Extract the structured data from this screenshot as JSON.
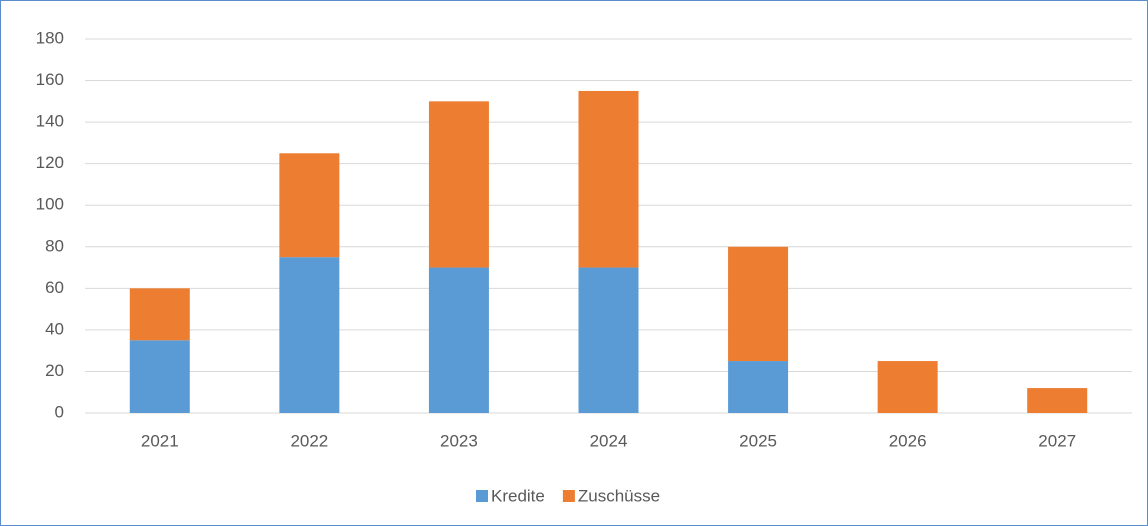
{
  "chart_data": {
    "type": "bar",
    "stacked": true,
    "categories": [
      "2021",
      "2022",
      "2023",
      "2024",
      "2025",
      "2026",
      "2027"
    ],
    "series": [
      {
        "name": "Kredite",
        "color": "#5b9bd5",
        "values": [
          35,
          75,
          70,
          70,
          25,
          0,
          0
        ]
      },
      {
        "name": "Zuschüsse",
        "color": "#ed7d31",
        "values": [
          25,
          50,
          80,
          85,
          55,
          25,
          12
        ]
      }
    ],
    "ylim": [
      0,
      180
    ],
    "yticks": [
      0,
      20,
      40,
      60,
      80,
      100,
      120,
      140,
      160,
      180
    ],
    "grid": true,
    "legend": "bottom"
  }
}
